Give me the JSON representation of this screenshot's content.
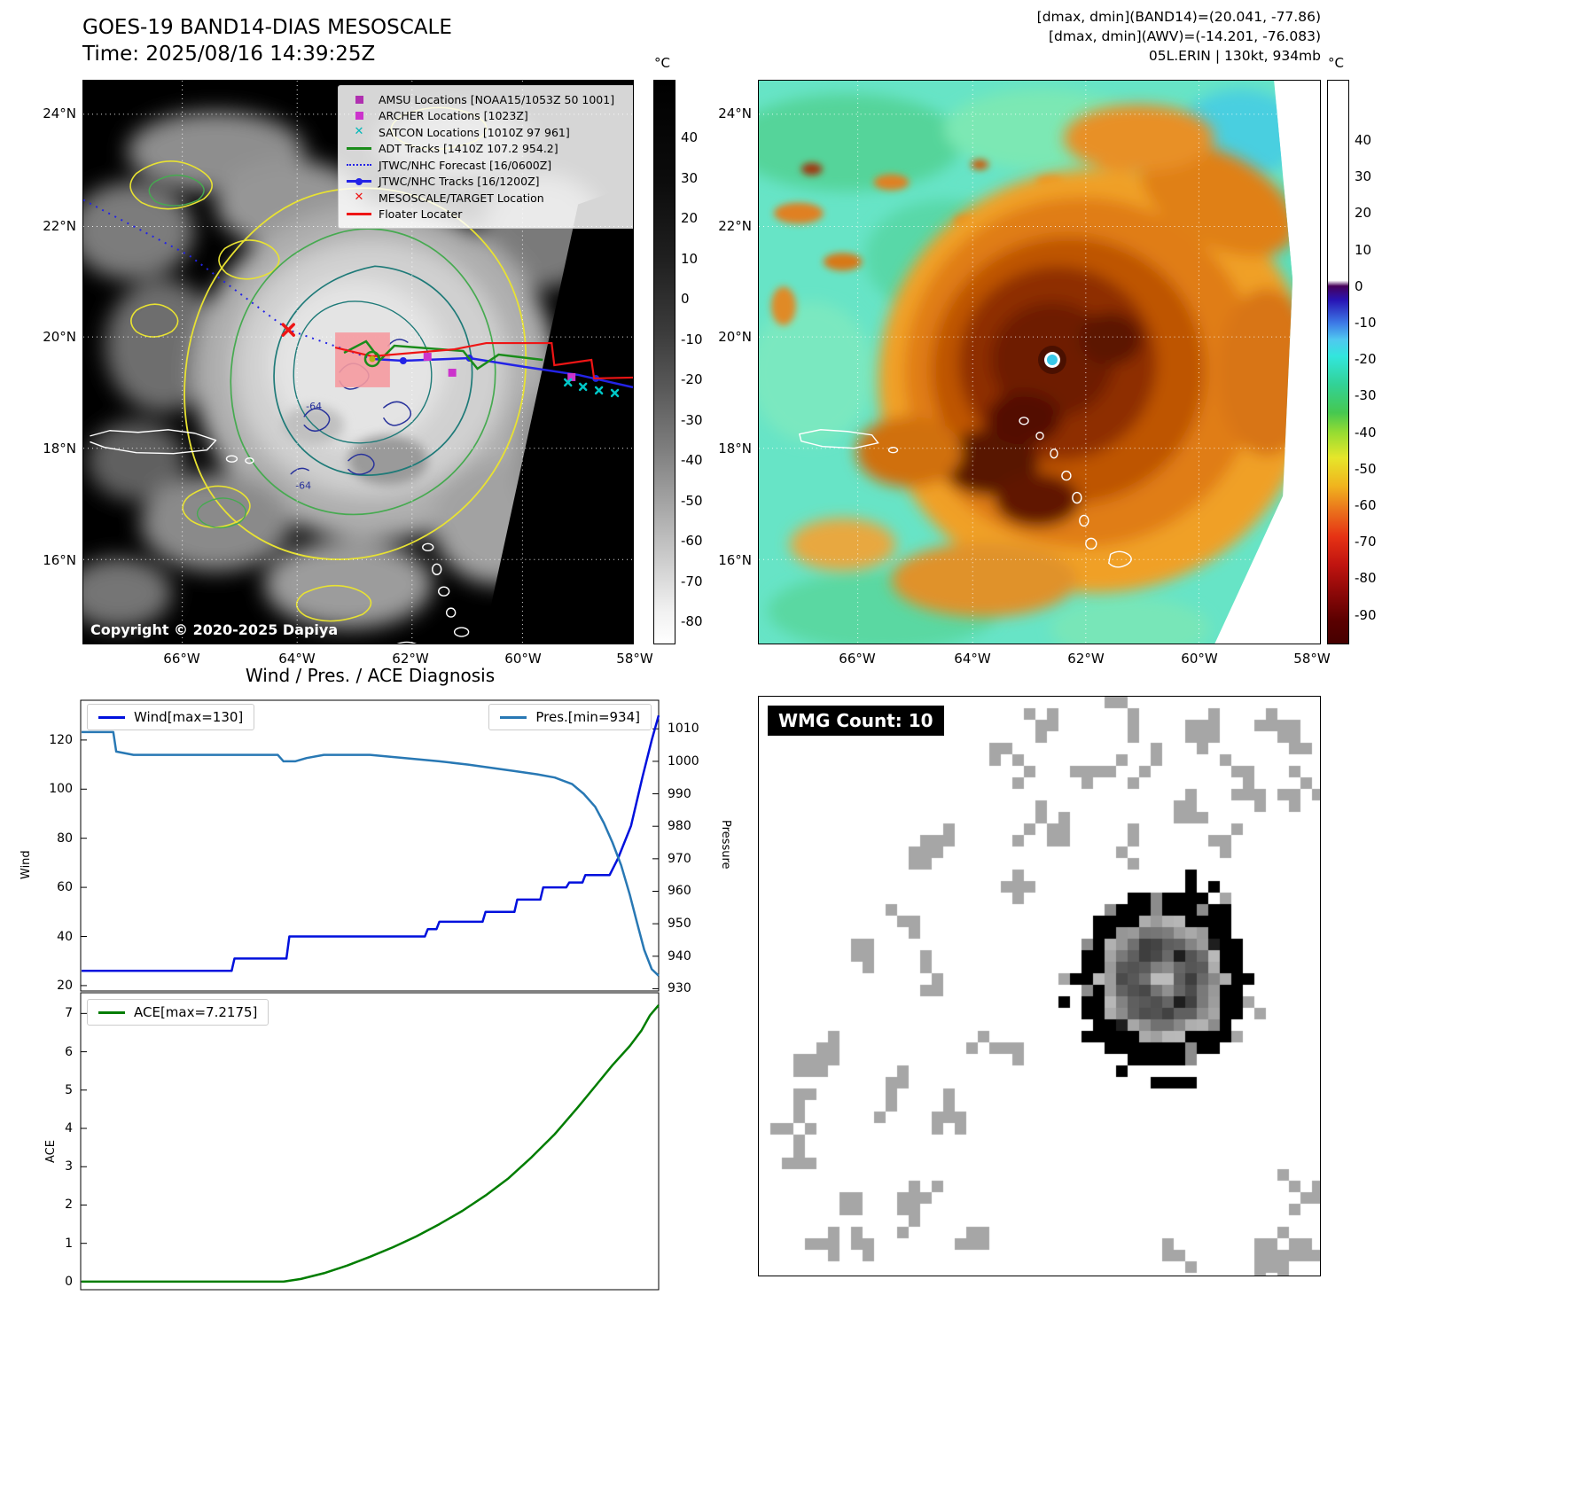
{
  "band14": {
    "title1": "GOES-19 BAND14-DIAS MESOSCALE",
    "title2": "Time: 2025/08/16 14:39:25Z",
    "copyright": "Copyright © 2020-2025 Dapiya",
    "legend": [
      {
        "marker": "square",
        "color": "#b030b0",
        "label": "AMSU Locations [NOAA15/1053Z 50 1001]"
      },
      {
        "marker": "square",
        "color": "#cc33cc",
        "label": "ARCHER Locations [1023Z]"
      },
      {
        "marker": "cross",
        "color": "#00b8b8",
        "label": "SATCON Locations [1010Z 97 961]"
      },
      {
        "marker": "line",
        "color": "#1a8c1a",
        "label": "ADT Tracks [1410Z 107.2 954.2]"
      },
      {
        "marker": "dotted",
        "color": "#2323e6",
        "label": "JTWC/NHC Forecast [16/0600Z]"
      },
      {
        "marker": "line-dot",
        "color": "#2323e6",
        "label": "JTWC/NHC Tracks [16/1200Z]"
      },
      {
        "marker": "x",
        "color": "#ee1515",
        "label": "MESOSCALE/TARGET Location"
      },
      {
        "marker": "line",
        "color": "#ee1515",
        "label": "Floater Locater"
      }
    ],
    "x_ticks": [
      "66°W",
      "64°W",
      "62°W",
      "60°W",
      "58°W"
    ],
    "y_ticks": [
      "24°N",
      "22°N",
      "20°N",
      "18°N",
      "16°N"
    ],
    "colorbar": {
      "unit": "°C",
      "ticks": [
        "40",
        "30",
        "20",
        "10",
        "0",
        "-10",
        "-20",
        "-30",
        "-40",
        "-50",
        "-60",
        "-70",
        "-80"
      ]
    },
    "contour_labels": [
      "-64",
      "-64"
    ]
  },
  "awv": {
    "header": [
      "[dmax, dmin](BAND14)=(20.041, -77.86)",
      "[dmax, dmin](AWV)=(-14.201, -76.083)",
      "05L.ERIN | 130kt, 934mb"
    ],
    "x_ticks": [
      "66°W",
      "64°W",
      "62°W",
      "60°W",
      "58°W"
    ],
    "y_ticks": [
      "24°N",
      "22°N",
      "20°N",
      "18°N",
      "16°N"
    ],
    "colorbar": {
      "unit": "°C",
      "ticks": [
        "40",
        "30",
        "20",
        "10",
        "0",
        "-10",
        "-20",
        "-30",
        "-40",
        "-50",
        "-60",
        "-70",
        "-80",
        "-90"
      ]
    }
  },
  "diagnosis": {
    "title": "Wind / Pres. / ACE Diagnosis",
    "wind_label": "Wind",
    "pressure_label": "Pressure",
    "ace_label": "ACE",
    "legend_wind": "Wind[max=130]",
    "legend_pres": "Pres.[min=934]",
    "legend_ace": "ACE[max=7.2175]"
  },
  "wmg": {
    "label": "WMG Count: 10"
  },
  "chart_data": [
    {
      "type": "line",
      "title": "Wind / Pres. / ACE Diagnosis",
      "x_range": [
        0,
        1
      ],
      "grid": false,
      "series": [
        {
          "name": "Wind",
          "color": "#0010dd",
          "axis": "left",
          "ylabel": "Wind",
          "ylim": [
            17.8,
            136.2
          ],
          "yticks": [
            20,
            40,
            60,
            80,
            100,
            120
          ],
          "max": 130,
          "points": [
            [
              0.0,
              26
            ],
            [
              0.26,
              26
            ],
            [
              0.265,
              31
            ],
            [
              0.355,
              31
            ],
            [
              0.36,
              40
            ],
            [
              0.595,
              40
            ],
            [
              0.6,
              43
            ],
            [
              0.615,
              43
            ],
            [
              0.62,
              46
            ],
            [
              0.695,
              46
            ],
            [
              0.7,
              50
            ],
            [
              0.75,
              50
            ],
            [
              0.755,
              55
            ],
            [
              0.795,
              55
            ],
            [
              0.8,
              60
            ],
            [
              0.84,
              60
            ],
            [
              0.845,
              62
            ],
            [
              0.868,
              62
            ],
            [
              0.873,
              65
            ],
            [
              0.915,
              65
            ],
            [
              0.93,
              72
            ],
            [
              0.952,
              85
            ],
            [
              0.972,
              105
            ],
            [
              0.988,
              120
            ],
            [
              1.0,
              130
            ]
          ]
        },
        {
          "name": "Pres.",
          "color": "#2878b4",
          "axis": "right",
          "ylabel": "Pressure",
          "ylim": [
            929.3,
            1018.8
          ],
          "yticks": [
            930,
            940,
            950,
            960,
            970,
            980,
            990,
            1000,
            1010
          ],
          "min": 934,
          "points": [
            [
              0.0,
              1009
            ],
            [
              0.055,
              1009
            ],
            [
              0.06,
              1003
            ],
            [
              0.09,
              1002
            ],
            [
              0.34,
              1002
            ],
            [
              0.35,
              1000
            ],
            [
              0.37,
              1000
            ],
            [
              0.39,
              1001
            ],
            [
              0.42,
              1002
            ],
            [
              0.5,
              1002
            ],
            [
              0.56,
              1001
            ],
            [
              0.62,
              1000
            ],
            [
              0.67,
              999
            ],
            [
              0.71,
              998
            ],
            [
              0.75,
              997
            ],
            [
              0.79,
              996
            ],
            [
              0.82,
              995
            ],
            [
              0.85,
              993
            ],
            [
              0.87,
              990
            ],
            [
              0.89,
              986
            ],
            [
              0.905,
              981
            ],
            [
              0.92,
              975
            ],
            [
              0.935,
              968
            ],
            [
              0.95,
              959
            ],
            [
              0.963,
              950
            ],
            [
              0.975,
              942
            ],
            [
              0.988,
              936
            ],
            [
              1.0,
              934
            ]
          ]
        }
      ]
    },
    {
      "type": "line",
      "x_range": [
        0,
        1
      ],
      "grid": false,
      "series": [
        {
          "name": "ACE",
          "color": "#007d00",
          "axis": "left",
          "ylabel": "ACE",
          "ylim": [
            -0.21,
            7.54
          ],
          "yticks": [
            0,
            1,
            2,
            3,
            4,
            5,
            6,
            7
          ],
          "max": 7.2175,
          "points": [
            [
              0.0,
              0
            ],
            [
              0.35,
              0
            ],
            [
              0.38,
              0.07
            ],
            [
              0.42,
              0.22
            ],
            [
              0.46,
              0.42
            ],
            [
              0.5,
              0.65
            ],
            [
              0.54,
              0.9
            ],
            [
              0.58,
              1.18
            ],
            [
              0.62,
              1.5
            ],
            [
              0.66,
              1.85
            ],
            [
              0.7,
              2.25
            ],
            [
              0.74,
              2.7
            ],
            [
              0.78,
              3.25
            ],
            [
              0.82,
              3.85
            ],
            [
              0.86,
              4.55
            ],
            [
              0.89,
              5.1
            ],
            [
              0.92,
              5.65
            ],
            [
              0.95,
              6.15
            ],
            [
              0.97,
              6.55
            ],
            [
              0.985,
              6.95
            ],
            [
              1.0,
              7.2175
            ]
          ]
        }
      ]
    }
  ]
}
